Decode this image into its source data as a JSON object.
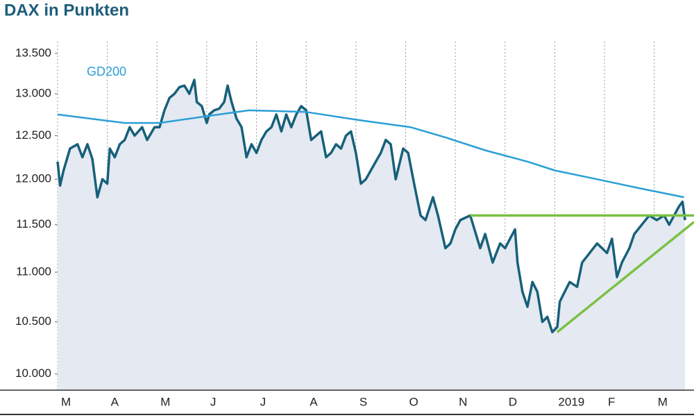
{
  "chart_data": {
    "type": "line",
    "title": "DAX in Punkten",
    "log_scale": true,
    "grid": true,
    "fill_color": "#e4e9f2",
    "xlim": [
      0,
      12.8
    ],
    "ylim": [
      9850,
      13650
    ],
    "xticks": [
      {
        "value": 0,
        "label": "M"
      },
      {
        "value": 1,
        "label": "A"
      },
      {
        "value": 2,
        "label": "M"
      },
      {
        "value": 3,
        "label": "J"
      },
      {
        "value": 4,
        "label": "J"
      },
      {
        "value": 5,
        "label": "A"
      },
      {
        "value": 6,
        "label": "S"
      },
      {
        "value": 7,
        "label": "O"
      },
      {
        "value": 8,
        "label": "N"
      },
      {
        "value": 9,
        "label": "D"
      },
      {
        "value": 10,
        "label": "2019"
      },
      {
        "value": 11,
        "label": "F"
      },
      {
        "value": 12,
        "label": "M"
      }
    ],
    "yticks": [
      {
        "value": 10000,
        "label": "10.000"
      },
      {
        "value": 10500,
        "label": "10.500"
      },
      {
        "value": 11000,
        "label": "11.000"
      },
      {
        "value": 11500,
        "label": "11.500"
      },
      {
        "value": 12000,
        "label": "12.000"
      },
      {
        "value": 12500,
        "label": "12.500"
      },
      {
        "value": 13000,
        "label": "13.000"
      },
      {
        "value": 13500,
        "label": "13.500"
      }
    ],
    "series": [
      {
        "color": "#17607a",
        "fill": true,
        "x": [
          0,
          0.05,
          0.12,
          0.25,
          0.4,
          0.5,
          0.6,
          0.7,
          0.8,
          0.9,
          1.0,
          1.05,
          1.15,
          1.25,
          1.35,
          1.45,
          1.55,
          1.7,
          1.8,
          1.95,
          2.05,
          2.15,
          2.25,
          2.35,
          2.45,
          2.55,
          2.65,
          2.75,
          2.8,
          2.9,
          3.0,
          3.05,
          3.15,
          3.25,
          3.35,
          3.42,
          3.5,
          3.6,
          3.7,
          3.8,
          3.9,
          4.0,
          4.1,
          4.2,
          4.3,
          4.4,
          4.5,
          4.6,
          4.7,
          4.8,
          4.9,
          5.0,
          5.1,
          5.2,
          5.3,
          5.4,
          5.5,
          5.6,
          5.7,
          5.8,
          5.9,
          6.0,
          6.1,
          6.2,
          6.3,
          6.4,
          6.5,
          6.6,
          6.7,
          6.8,
          6.95,
          7.05,
          7.17,
          7.3,
          7.4,
          7.55,
          7.65,
          7.8,
          7.9,
          8.0,
          8.1,
          8.3,
          8.5,
          8.6,
          8.75,
          8.9,
          9.0,
          9.1,
          9.2,
          9.25,
          9.35,
          9.45,
          9.55,
          9.65,
          9.75,
          9.85,
          9.95,
          10.05,
          10.1,
          10.2,
          10.3,
          10.45,
          10.55,
          10.7,
          10.85,
          10.95,
          11.05,
          11.15,
          11.25,
          11.35,
          11.5,
          11.6,
          11.75,
          11.9,
          12.05,
          12.2,
          12.3,
          12.4,
          12.5,
          12.57,
          12.62
        ],
        "values": [
          12200,
          11930,
          12100,
          12350,
          12400,
          12250,
          12400,
          12230,
          11800,
          12000,
          11950,
          12350,
          12250,
          12400,
          12450,
          12600,
          12500,
          12600,
          12450,
          12600,
          12600,
          12800,
          12950,
          13000,
          13080,
          13100,
          13000,
          13170,
          12900,
          12850,
          12650,
          12750,
          12800,
          12820,
          12900,
          13100,
          12900,
          12700,
          12600,
          12250,
          12400,
          12300,
          12450,
          12550,
          12600,
          12750,
          12550,
          12750,
          12600,
          12750,
          12850,
          12800,
          12450,
          12500,
          12550,
          12250,
          12300,
          12400,
          12350,
          12500,
          12550,
          12300,
          11950,
          12000,
          12100,
          12200,
          12300,
          12450,
          12400,
          12000,
          12350,
          12300,
          11950,
          11600,
          11550,
          11800,
          11600,
          11250,
          11300,
          11450,
          11550,
          11600,
          11250,
          11400,
          11100,
          11300,
          11250,
          11350,
          11450,
          11100,
          10800,
          10650,
          10900,
          10800,
          10500,
          10550,
          10400,
          10450,
          10700,
          10800,
          10900,
          10850,
          11100,
          11200,
          11300,
          11250,
          11200,
          11350,
          10950,
          11100,
          11250,
          11400,
          11500,
          11600,
          11550,
          11600,
          11500,
          11600,
          11700,
          11750,
          11550
        ]
      },
      {
        "name": "GD200",
        "color": "#2a9fd6",
        "x": [
          0,
          1.35,
          2.05,
          3.0,
          3.85,
          5.0,
          6.1,
          7.1,
          7.8,
          8.6,
          9.45,
          10.0,
          10.85,
          11.7,
          12.6
        ],
        "values": [
          12750,
          12650,
          12650,
          12730,
          12800,
          12780,
          12680,
          12600,
          12480,
          12330,
          12200,
          12100,
          12000,
          11900,
          11800
        ]
      },
      {
        "color": "#7ac143",
        "x": [
          8.3,
          12.8
        ],
        "values": [
          11600,
          11600
        ]
      },
      {
        "color": "#7ac143",
        "x": [
          10.05,
          12.8
        ],
        "values": [
          10400,
          11530
        ]
      }
    ]
  }
}
